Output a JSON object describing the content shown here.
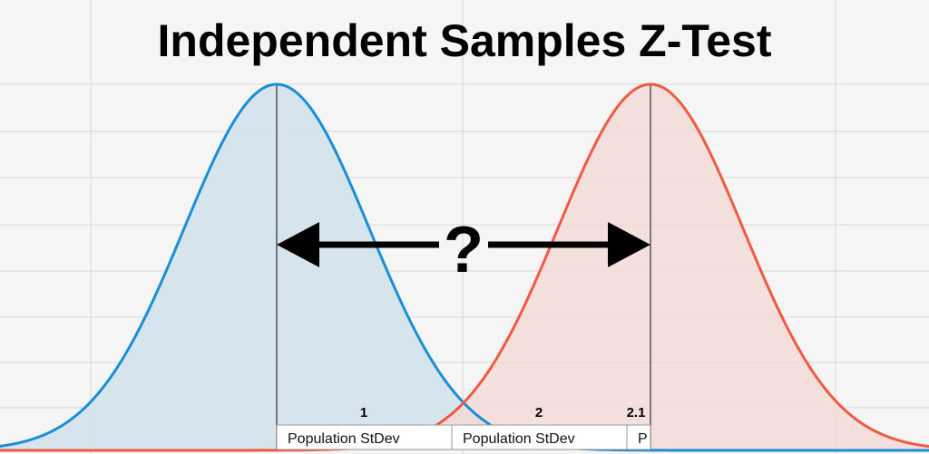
{
  "title": "Independent Samples Z-Test",
  "question_mark": "?",
  "colors": {
    "background": "#f5f5f5",
    "grid": "#d6d6d6",
    "pop1_line": "#1a8fd6",
    "pop1_fill": "#d3e3ec",
    "pop2_line": "#f05a42",
    "pop2_fill": "#f2d9d6",
    "mean_line": "#555555",
    "arrow": "#000000"
  },
  "distributions": [
    {
      "name": "population-1",
      "color_key": "pop1"
    },
    {
      "name": "population-2",
      "color_key": "pop2"
    }
  ],
  "table": {
    "headers": [
      "1",
      "2",
      "2.1"
    ],
    "cells": [
      "Population StDev",
      "Population StDev",
      "P"
    ]
  }
}
